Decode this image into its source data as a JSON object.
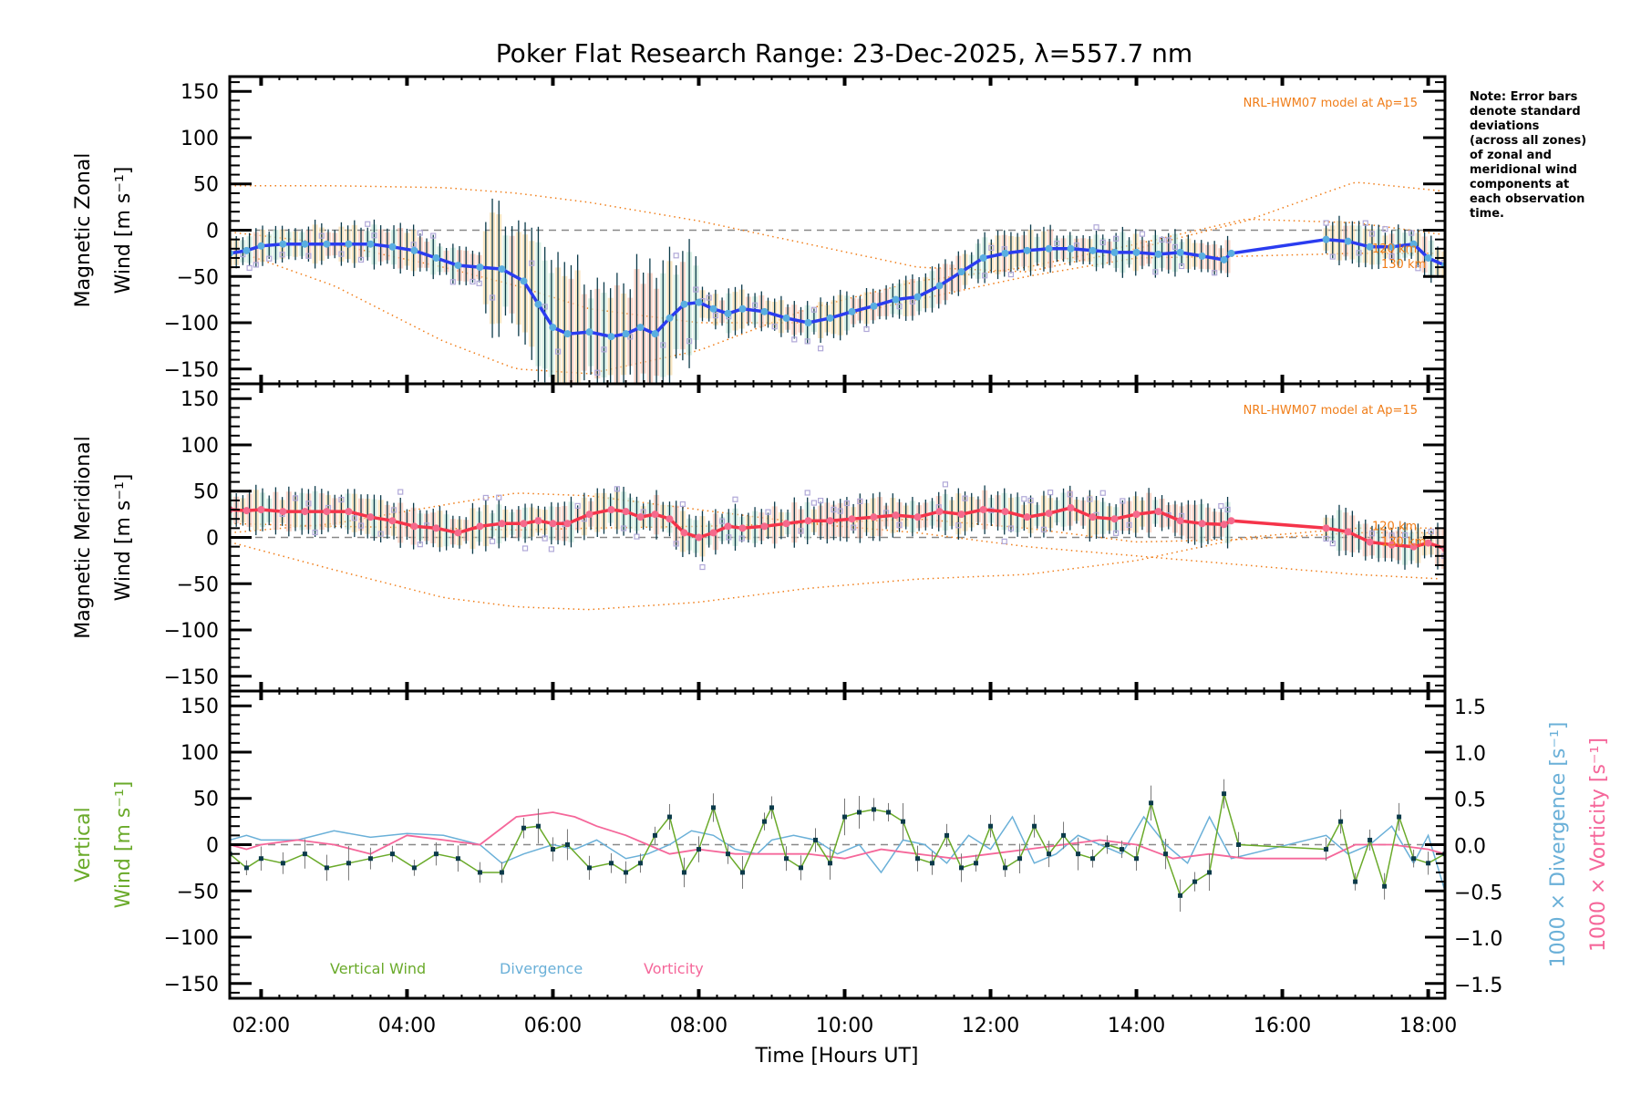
{
  "chart_data": {
    "type": "line",
    "title": "Poker Flat Research Range: 23-Dec-2025, λ=557.7 nm",
    "xlabel": "Time [Hours UT]",
    "x_ticks": [
      "02:00",
      "04:00",
      "06:00",
      "08:00",
      "10:00",
      "12:00",
      "14:00",
      "16:00",
      "18:00"
    ],
    "x_tick_hours": [
      2,
      4,
      6,
      8,
      10,
      12,
      14,
      16,
      18
    ],
    "xlim_hours": [
      1.57,
      18.23
    ],
    "note": [
      "Note: Error bars",
      "denote standard",
      "deviations",
      "(across all zones)",
      "of zonal and",
      "meridional wind",
      "components at",
      "each observation",
      "time."
    ],
    "colors": {
      "zonal_line": "#2a3cf0",
      "zonal_points": "#5aaee0",
      "meridional_line": "#f5344a",
      "meridional_points": "#f56a8c",
      "model": "#f07d18",
      "scatter": "#b0a8d8",
      "errbar": "#0b3a4a",
      "vertical": "#6aaa2a",
      "divergence": "#6ab0d8",
      "vorticity": "#f5679a",
      "zero_line": "#888888"
    },
    "panels": [
      {
        "name": "zonal",
        "ylabel_line1": "Magnetic Zonal",
        "ylabel_line2": "Wind [m s⁻¹]",
        "ylim": [
          -166,
          166
        ],
        "y_ticks": [
          150,
          100,
          50,
          0,
          -50,
          -100,
          -150
        ],
        "model_label": "NRL-HWM07 model at Ap=15",
        "model_altitudes": [
          "120 km",
          "130 km"
        ],
        "series": {
          "name": "Zonal wind",
          "x": [
            1.57,
            1.8,
            2.0,
            2.3,
            2.6,
            2.9,
            3.2,
            3.5,
            3.8,
            4.1,
            4.4,
            4.7,
            5.0,
            5.3,
            5.6,
            5.8,
            6.0,
            6.2,
            6.5,
            6.8,
            7.0,
            7.2,
            7.4,
            7.6,
            7.8,
            8.0,
            8.2,
            8.4,
            8.6,
            8.9,
            9.2,
            9.5,
            9.8,
            10.1,
            10.4,
            10.7,
            11.0,
            11.3,
            11.6,
            11.9,
            12.2,
            12.5,
            12.8,
            13.1,
            13.4,
            13.7,
            14.0,
            14.3,
            14.6,
            14.9,
            15.2,
            15.3,
            16.6,
            16.9,
            17.2,
            17.5,
            17.8,
            18.0,
            18.23
          ],
          "values": [
            -25,
            -22,
            -17,
            -15,
            -15,
            -15,
            -15,
            -15,
            -18,
            -22,
            -30,
            -38,
            -40,
            -42,
            -55,
            -80,
            -105,
            -112,
            -110,
            -115,
            -112,
            -105,
            -112,
            -95,
            -80,
            -78,
            -85,
            -90,
            -85,
            -88,
            -95,
            -100,
            -95,
            -88,
            -82,
            -75,
            -72,
            -60,
            -45,
            -30,
            -25,
            -22,
            -20,
            -20,
            -22,
            -24,
            -24,
            -26,
            -24,
            -28,
            -32,
            -25,
            -10,
            -12,
            -18,
            -18,
            -15,
            -30,
            -38
          ]
        },
        "model_curves": [
          {
            "x": [
              1.57,
              3,
              4.5,
              5.5,
              6.5,
              8,
              9.5,
              11,
              12.5,
              14,
              15.5,
              17,
              18.23
            ],
            "values": [
              48,
              48,
              46,
              40,
              30,
              10,
              -15,
              -40,
              -45,
              -20,
              10,
              52,
              42
            ]
          },
          {
            "x": [
              1.57,
              3,
              4.5,
              5.5,
              6.5,
              8,
              9.5,
              11,
              12.5,
              14,
              15.5,
              17,
              18.23
            ],
            "values": [
              -2,
              -15,
              -40,
              -60,
              -85,
              -100,
              -100,
              -75,
              -50,
              -30,
              -28,
              -25,
              -25
            ]
          },
          {
            "x": [
              1.57,
              3,
              4.5,
              5.5,
              6.5,
              8,
              9.5,
              11,
              12.5,
              14,
              15.5,
              17,
              18.23
            ],
            "values": [
              -20,
              -60,
              -120,
              -150,
              -155,
              -130,
              -85,
              -55,
              -40,
              -15,
              12,
              8,
              -5
            ]
          }
        ]
      },
      {
        "name": "meridional",
        "ylabel_line1": "Magnetic Meridional",
        "ylabel_line2": "Wind [m s⁻¹]",
        "ylim": [
          -166,
          166
        ],
        "y_ticks": [
          150,
          100,
          50,
          0,
          -50,
          -100,
          -150
        ],
        "model_label": "NRL-HWM07 model at Ap=15",
        "model_altitudes": [
          "120 km",
          "130 km"
        ],
        "series": {
          "name": "Meridional wind",
          "x": [
            1.57,
            1.8,
            2.0,
            2.3,
            2.6,
            2.9,
            3.2,
            3.5,
            3.8,
            4.1,
            4.4,
            4.7,
            5.0,
            5.3,
            5.6,
            5.8,
            6.0,
            6.2,
            6.5,
            6.8,
            7.0,
            7.2,
            7.4,
            7.6,
            7.8,
            8.0,
            8.2,
            8.4,
            8.6,
            8.9,
            9.2,
            9.5,
            9.8,
            10.1,
            10.4,
            10.7,
            11.0,
            11.3,
            11.6,
            11.9,
            12.2,
            12.5,
            12.8,
            13.1,
            13.4,
            13.7,
            14.0,
            14.3,
            14.6,
            14.9,
            15.2,
            15.3,
            16.6,
            16.9,
            17.2,
            17.5,
            17.8,
            18.0,
            18.23
          ],
          "values": [
            30,
            29,
            30,
            28,
            28,
            28,
            28,
            22,
            18,
            12,
            10,
            5,
            12,
            15,
            15,
            18,
            15,
            15,
            25,
            30,
            28,
            22,
            25,
            20,
            5,
            0,
            5,
            12,
            10,
            12,
            15,
            18,
            18,
            20,
            22,
            24,
            22,
            28,
            25,
            30,
            28,
            22,
            26,
            32,
            22,
            20,
            25,
            28,
            18,
            15,
            14,
            18,
            10,
            6,
            -5,
            -8,
            -10,
            -6,
            -12
          ]
        },
        "model_curves": [
          {
            "x": [
              1.57,
              3,
              4.5,
              5.5,
              6.5,
              8,
              9.5,
              11,
              12.5,
              14,
              15.5,
              17,
              18.23
            ],
            "values": [
              5,
              15,
              35,
              48,
              45,
              30,
              15,
              5,
              -10,
              -20,
              -30,
              -40,
              -45
            ]
          },
          {
            "x": [
              1.57,
              3,
              4.5,
              5.5,
              6.5,
              8,
              9.5,
              11,
              12.5,
              14,
              15.5,
              17,
              18.23
            ],
            "values": [
              -5,
              -35,
              -65,
              -75,
              -78,
              -70,
              -55,
              -45,
              -40,
              -25,
              0,
              10,
              10
            ]
          },
          {
            "x": [
              1.57,
              3,
              4.5,
              5.5,
              6.5,
              8,
              9.5,
              11,
              12.5,
              14,
              15.5,
              17,
              18.23
            ],
            "values": [
              15,
              12,
              10,
              8,
              10,
              12,
              15,
              20,
              10,
              -5,
              -2,
              5,
              5
            ]
          }
        ]
      },
      {
        "name": "vertical",
        "ylabel_line1": "Vertical",
        "ylabel_line2": "Wind [m s⁻¹]",
        "ylim": [
          -166,
          166
        ],
        "y_ticks": [
          150,
          100,
          50,
          0,
          -50,
          -100,
          -150
        ],
        "y2label_divergence": "1000 × Divergence [s⁻¹]",
        "y2label_vorticity": "1000 × Vorticity [s⁻¹]",
        "y2lim": [
          -1.66,
          1.66
        ],
        "y2_ticks": [
          "1.5",
          "1.0",
          "0.5",
          "0.0",
          "−0.5",
          "−1.0",
          "−1.5"
        ],
        "y2_tick_values": [
          1.5,
          1.0,
          0.5,
          0.0,
          -0.5,
          -1.0,
          -1.5
        ],
        "legend": [
          "Vertical Wind",
          "Divergence",
          "Vorticity"
        ],
        "vertical_wind": {
          "x": [
            1.57,
            1.8,
            2.0,
            2.3,
            2.6,
            2.9,
            3.2,
            3.5,
            3.8,
            4.1,
            4.4,
            4.7,
            5.0,
            5.3,
            5.6,
            5.8,
            6.0,
            6.2,
            6.5,
            6.8,
            7.0,
            7.2,
            7.4,
            7.6,
            7.8,
            8.0,
            8.2,
            8.4,
            8.6,
            8.9,
            9.0,
            9.2,
            9.4,
            9.6,
            9.8,
            10.0,
            10.2,
            10.4,
            10.6,
            10.8,
            11.0,
            11.2,
            11.4,
            11.6,
            11.8,
            12.0,
            12.2,
            12.4,
            12.6,
            12.8,
            13.0,
            13.2,
            13.4,
            13.6,
            13.8,
            14.0,
            14.2,
            14.4,
            14.6,
            14.8,
            15.0,
            15.2,
            15.4,
            16.6,
            16.8,
            17.0,
            17.2,
            17.4,
            17.6,
            17.8,
            18.0,
            18.23
          ],
          "values": [
            -10,
            -25,
            -15,
            -20,
            -10,
            -25,
            -20,
            -15,
            -10,
            -25,
            -10,
            -15,
            -30,
            -30,
            18,
            20,
            -5,
            0,
            -25,
            -20,
            -30,
            -20,
            10,
            30,
            -30,
            -5,
            40,
            -10,
            -30,
            25,
            40,
            -15,
            -25,
            5,
            -20,
            30,
            35,
            38,
            35,
            25,
            -15,
            -20,
            10,
            -25,
            -20,
            20,
            -25,
            -15,
            20,
            -10,
            10,
            -10,
            -15,
            0,
            -5,
            -15,
            45,
            -10,
            -55,
            -40,
            -30,
            55,
            0,
            -5,
            25,
            -40,
            5,
            -45,
            30,
            -15,
            -20,
            -10
          ]
        },
        "divergence": {
          "x": [
            1.57,
            1.8,
            2.0,
            2.5,
            3.0,
            3.5,
            4.0,
            4.5,
            5.0,
            5.3,
            5.6,
            6.0,
            6.3,
            6.6,
            7.0,
            7.3,
            7.6,
            7.9,
            8.2,
            8.5,
            8.8,
            9.0,
            9.3,
            9.6,
            9.9,
            10.2,
            10.5,
            10.8,
            11.1,
            11.4,
            11.7,
            12.0,
            12.3,
            12.6,
            12.9,
            13.2,
            13.5,
            13.8,
            14.1,
            14.4,
            14.7,
            15.0,
            15.3,
            16.6,
            16.9,
            17.2,
            17.5,
            17.8,
            18.0,
            18.23
          ],
          "values": [
            0.05,
            0.1,
            0.05,
            0.05,
            0.15,
            0.08,
            0.12,
            0.1,
            0.0,
            -0.2,
            -0.1,
            0.0,
            -0.05,
            0.05,
            -0.15,
            -0.1,
            0.0,
            0.15,
            0.1,
            -0.05,
            -0.1,
            0.05,
            0.1,
            0.05,
            -0.1,
            0.0,
            -0.3,
            0.05,
            0.0,
            -0.2,
            0.1,
            -0.05,
            0.3,
            -0.2,
            -0.1,
            0.1,
            0.0,
            -0.1,
            0.3,
            0.0,
            -0.2,
            0.3,
            -0.15,
            0.1,
            -0.1,
            0.0,
            0.2,
            -0.2,
            0.1,
            -0.5
          ]
        },
        "vorticity": {
          "x": [
            1.57,
            1.8,
            2.0,
            2.5,
            3.0,
            3.5,
            4.0,
            4.5,
            5.0,
            5.5,
            6.0,
            6.3,
            6.6,
            7.0,
            7.3,
            7.6,
            8.0,
            8.5,
            9.0,
            9.5,
            10.0,
            10.5,
            11.0,
            11.5,
            12.0,
            12.5,
            13.0,
            13.5,
            14.0,
            14.5,
            15.0,
            15.5,
            16.6,
            17.0,
            17.5,
            18.0,
            18.23
          ],
          "values": [
            0.0,
            -0.05,
            0.0,
            0.05,
            0.0,
            -0.1,
            0.1,
            0.05,
            0.0,
            0.3,
            0.35,
            0.3,
            0.2,
            0.1,
            0.0,
            -0.1,
            -0.05,
            -0.1,
            -0.1,
            -0.1,
            -0.15,
            -0.05,
            -0.1,
            -0.15,
            -0.1,
            -0.05,
            0.0,
            0.05,
            0.0,
            -0.15,
            -0.1,
            -0.15,
            -0.15,
            0.0,
            0.0,
            -0.05,
            -0.1
          ]
        }
      }
    ]
  }
}
